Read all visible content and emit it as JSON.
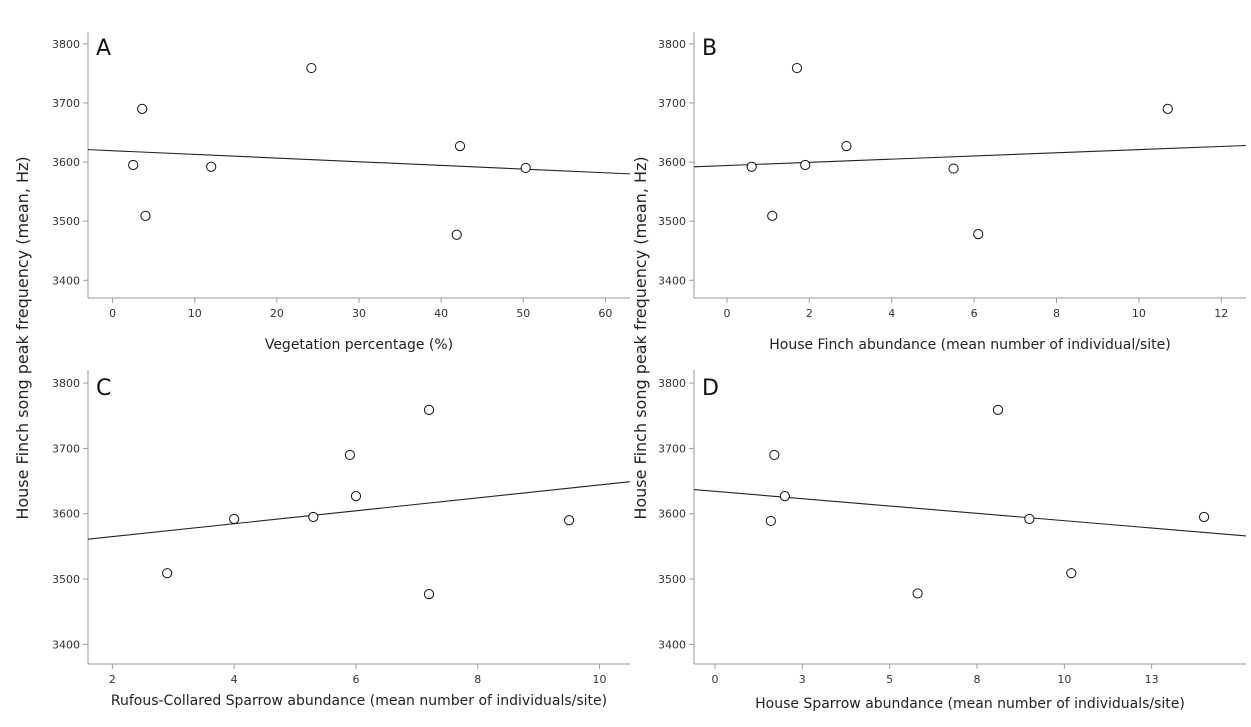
{
  "figure": {
    "ylabel_left": "House Finch song peak frequency (mean, Hz)",
    "ylabel_right": "House Finch song peak frequency (mean, Hz)"
  },
  "chart_data": [
    {
      "panel": "A",
      "type": "scatter",
      "xlabel": "Vegetation percentage (%)",
      "ylabel": "House Finch song peak frequency (mean, Hz)",
      "xlim": [
        -3,
        63
      ],
      "ylim": [
        3370,
        3820
      ],
      "xticks": [
        0,
        10,
        20,
        30,
        40,
        50,
        60
      ],
      "xtick_labels": [
        "0",
        "10",
        "20",
        "30",
        "40",
        "50",
        "60"
      ],
      "yticks": [
        3400,
        3500,
        3600,
        3700,
        3800
      ],
      "ytick_labels": [
        "3400",
        "3500",
        "3600",
        "3700",
        "3800"
      ],
      "x": [
        2.5,
        3.6,
        4.0,
        12.0,
        24.2,
        41.9,
        42.3,
        50.3
      ],
      "y": [
        3595,
        3690,
        3509,
        3592,
        3759,
        3477,
        3627,
        3590
      ],
      "fit_line": {
        "x": [
          -3,
          63
        ],
        "y": [
          3621,
          3580
        ]
      },
      "grid": false
    },
    {
      "panel": "B",
      "type": "scatter",
      "xlabel": "House Finch abundance (mean number of individual/site)",
      "ylabel": "House Finch song peak frequency (mean, Hz)",
      "xlim": [
        -0.8,
        12.6
      ],
      "ylim": [
        3370,
        3820
      ],
      "xticks": [
        0,
        2,
        4,
        6,
        8,
        10,
        12
      ],
      "xtick_labels": [
        "0",
        "2",
        "4",
        "6",
        "8",
        "10",
        "12"
      ],
      "yticks": [
        3400,
        3500,
        3600,
        3700,
        3800
      ],
      "ytick_labels": [
        "3400",
        "3500",
        "3600",
        "3700",
        "3800"
      ],
      "x": [
        0.6,
        1.1,
        1.7,
        1.9,
        2.9,
        5.5,
        6.1,
        10.7
      ],
      "y": [
        3592,
        3509,
        3759,
        3595,
        3627,
        3589,
        3478,
        3690
      ],
      "fit_line": {
        "x": [
          -0.8,
          12.6
        ],
        "y": [
          3592,
          3628
        ]
      },
      "grid": false
    },
    {
      "panel": "C",
      "type": "scatter",
      "xlabel": "Rufous-Collared Sparrow abundance (mean number of individuals/site)",
      "ylabel": "House Finch song peak frequency (mean, Hz)",
      "xlim": [
        1.6,
        10.5
      ],
      "ylim": [
        3370,
        3820
      ],
      "xticks": [
        2,
        4,
        6,
        8,
        10
      ],
      "xtick_labels": [
        "2",
        "4",
        "6",
        "8",
        "10"
      ],
      "yticks": [
        3400,
        3500,
        3600,
        3700,
        3800
      ],
      "ytick_labels": [
        "3400",
        "3500",
        "3600",
        "3700",
        "3800"
      ],
      "x": [
        2.9,
        4.0,
        5.3,
        5.9,
        6.0,
        7.2,
        7.2,
        9.5
      ],
      "y": [
        3509,
        3592,
        3595,
        3690,
        3627,
        3759,
        3477,
        3590
      ],
      "fit_line": {
        "x": [
          1.6,
          10.5
        ],
        "y": [
          3561,
          3649
        ]
      },
      "grid": false
    },
    {
      "panel": "D",
      "type": "scatter",
      "xlabel": "House Sparrow abundance (mean number of individuals/site)",
      "ylabel": "House Finch song peak frequency (mean, Hz)",
      "xlim": [
        -0.6,
        15.2
      ],
      "ylim": [
        3370,
        3820
      ],
      "xticks": [
        0,
        2.5,
        5,
        7.5,
        10,
        12.5
      ],
      "xtick_labels": [
        "0",
        "3",
        "5",
        "8",
        "10",
        "13"
      ],
      "yticks": [
        3400,
        3500,
        3600,
        3700,
        3800
      ],
      "ytick_labels": [
        "3400",
        "3500",
        "3600",
        "3700",
        "3800"
      ],
      "x": [
        1.6,
        1.7,
        2.0,
        5.8,
        8.1,
        9.0,
        10.2,
        14.0
      ],
      "y": [
        3589,
        3690,
        3627,
        3478,
        3759,
        3592,
        3509,
        3595
      ],
      "fit_line": {
        "x": [
          -0.6,
          15.2
        ],
        "y": [
          3637,
          3566
        ]
      },
      "grid": false
    }
  ]
}
